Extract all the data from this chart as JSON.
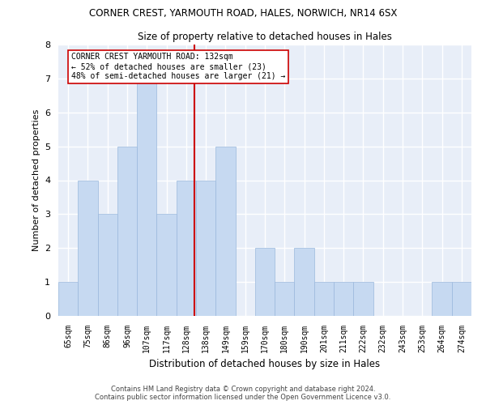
{
  "title1": "CORNER CREST, YARMOUTH ROAD, HALES, NORWICH, NR14 6SX",
  "title2": "Size of property relative to detached houses in Hales",
  "xlabel": "Distribution of detached houses by size in Hales",
  "ylabel": "Number of detached properties",
  "categories": [
    "65sqm",
    "75sqm",
    "86sqm",
    "96sqm",
    "107sqm",
    "117sqm",
    "128sqm",
    "138sqm",
    "149sqm",
    "159sqm",
    "170sqm",
    "180sqm",
    "190sqm",
    "201sqm",
    "211sqm",
    "222sqm",
    "232sqm",
    "243sqm",
    "253sqm",
    "264sqm",
    "274sqm"
  ],
  "values": [
    1,
    4,
    3,
    5,
    7,
    3,
    4,
    4,
    5,
    0,
    2,
    1,
    2,
    1,
    1,
    1,
    0,
    0,
    0,
    1,
    1
  ],
  "bar_color": "#c6d9f1",
  "bar_edge_color": "#9ab8dc",
  "vline_x_index": 6.4,
  "vline_color": "#cc0000",
  "annotation_text": "CORNER CREST YARMOUTH ROAD: 132sqm\n← 52% of detached houses are smaller (23)\n48% of semi-detached houses are larger (21) →",
  "annotation_box_color": "#ffffff",
  "annotation_box_edge": "#cc0000",
  "ylim": [
    0,
    8
  ],
  "yticks": [
    0,
    1,
    2,
    3,
    4,
    5,
    6,
    7,
    8
  ],
  "background_color": "#e8eef8",
  "grid_color": "#ffffff",
  "footer1": "Contains HM Land Registry data © Crown copyright and database right 2024.",
  "footer2": "Contains public sector information licensed under the Open Government Licence v3.0."
}
